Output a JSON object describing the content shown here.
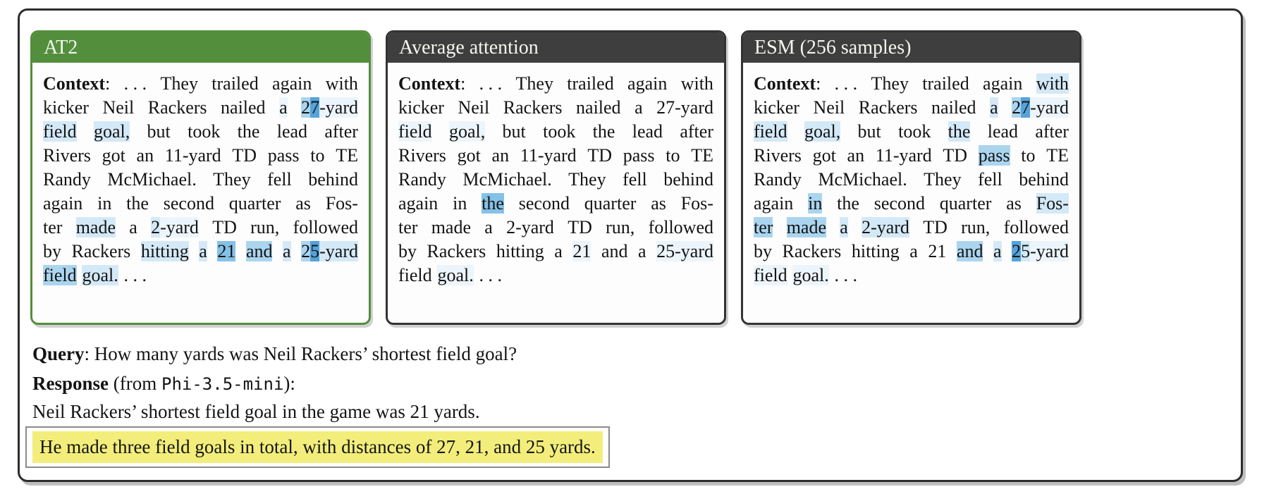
{
  "colors": {
    "accent_green": "#538e3d",
    "header_dark": "#3e3e3e",
    "outer_border": "#2d2d2d",
    "highlight_yellow": "#f3ee7b",
    "attribution_palette": {
      "1": "#ecf5fb",
      "2": "#d4e9f7",
      "3": "#abd5ef",
      "4": "#85c1e7",
      "5": "#55a3d9"
    }
  },
  "panels": [
    {
      "title": "AT2",
      "header_bg": "#538e3d",
      "border": "#538e3d",
      "lines": [
        [
          [
            {
              "t": "Context",
              "b": 1
            },
            {
              "t": ":"
            }
          ],
          [
            {
              "t": ". . ."
            }
          ],
          [
            {
              "t": "They"
            }
          ],
          [
            {
              "t": "trailed"
            }
          ],
          [
            {
              "t": "again"
            }
          ],
          [
            {
              "t": "with"
            }
          ]
        ],
        [
          [
            {
              "t": "kicker"
            }
          ],
          [
            {
              "t": "Neil"
            }
          ],
          [
            {
              "t": "Rackers"
            }
          ],
          [
            {
              "t": "nailed"
            }
          ],
          [
            {
              "t": "a",
              "h": 1
            }
          ],
          [
            {
              "t": "2",
              "h": 3
            },
            {
              "t": "7",
              "h": 5
            },
            {
              "t": "-yard",
              "h": 1
            }
          ]
        ],
        [
          [
            {
              "t": "field",
              "h": 2
            }
          ],
          [
            {
              "t": "goal,",
              "h": 2
            }
          ],
          [
            {
              "t": "but"
            }
          ],
          [
            {
              "t": "took"
            }
          ],
          [
            {
              "t": "the"
            }
          ],
          [
            {
              "t": "lead"
            }
          ],
          [
            {
              "t": "after"
            }
          ]
        ],
        [
          [
            {
              "t": "Rivers"
            }
          ],
          [
            {
              "t": "got"
            }
          ],
          [
            {
              "t": "an"
            }
          ],
          [
            {
              "t": "11-yard"
            }
          ],
          [
            {
              "t": "TD"
            }
          ],
          [
            {
              "t": "pass"
            }
          ],
          [
            {
              "t": "to"
            }
          ],
          [
            {
              "t": "TE"
            }
          ]
        ],
        [
          [
            {
              "t": "Randy"
            }
          ],
          [
            {
              "t": "McMichael."
            }
          ],
          [
            {
              "t": "They"
            }
          ],
          [
            {
              "t": "fell"
            }
          ],
          [
            {
              "t": "behind"
            }
          ]
        ],
        [
          [
            {
              "t": "again"
            }
          ],
          [
            {
              "t": "in"
            }
          ],
          [
            {
              "t": "the"
            }
          ],
          [
            {
              "t": "second"
            }
          ],
          [
            {
              "t": "quarter"
            }
          ],
          [
            {
              "t": "as"
            }
          ],
          [
            {
              "t": "Fos-"
            }
          ]
        ],
        [
          [
            {
              "t": "ter"
            }
          ],
          [
            {
              "t": "made",
              "h": 2
            }
          ],
          [
            {
              "t": "a"
            }
          ],
          [
            {
              "t": "2",
              "h": 2
            },
            {
              "t": "-yard",
              "h": 1
            }
          ],
          [
            {
              "t": "TD"
            }
          ],
          [
            {
              "t": "run,"
            }
          ],
          [
            {
              "t": "followed"
            }
          ]
        ],
        [
          [
            {
              "t": "by"
            }
          ],
          [
            {
              "t": "Rackers"
            }
          ],
          [
            {
              "t": "hitting",
              "h": 2
            }
          ],
          [
            {
              "t": "a",
              "h": 2
            }
          ],
          [
            {
              "t": "21",
              "h": 4
            }
          ],
          [
            {
              "t": "and",
              "h": 3
            }
          ],
          [
            {
              "t": "a",
              "h": 2
            }
          ],
          [
            {
              "t": "2",
              "h": 3
            },
            {
              "t": "5",
              "h": 5
            },
            {
              "t": "-yard",
              "h": 2
            }
          ]
        ],
        [
          [
            {
              "t": "field",
              "h": 3
            }
          ],
          [
            {
              "t": "goal.",
              "h": 2
            }
          ],
          [
            {
              "t": ". . ."
            }
          ]
        ]
      ]
    },
    {
      "title": "Average attention",
      "header_bg": "#3e3e3e",
      "border": "#333333",
      "lines": [
        [
          [
            {
              "t": "Context",
              "b": 1
            },
            {
              "t": ":"
            }
          ],
          [
            {
              "t": ". . ."
            }
          ],
          [
            {
              "t": "They"
            }
          ],
          [
            {
              "t": "trailed"
            }
          ],
          [
            {
              "t": "again"
            }
          ],
          [
            {
              "t": "with"
            }
          ]
        ],
        [
          [
            {
              "t": "kicker"
            }
          ],
          [
            {
              "t": "Neil"
            }
          ],
          [
            {
              "t": "Rackers"
            }
          ],
          [
            {
              "t": "nailed"
            }
          ],
          [
            {
              "t": "a"
            }
          ],
          [
            {
              "t": "27-yard"
            }
          ]
        ],
        [
          [
            {
              "t": "field",
              "h": 1
            }
          ],
          [
            {
              "t": "goal,",
              "h": 1
            }
          ],
          [
            {
              "t": "but"
            }
          ],
          [
            {
              "t": "took"
            }
          ],
          [
            {
              "t": "the"
            }
          ],
          [
            {
              "t": "lead"
            }
          ],
          [
            {
              "t": "after"
            }
          ]
        ],
        [
          [
            {
              "t": "Rivers"
            }
          ],
          [
            {
              "t": "got"
            }
          ],
          [
            {
              "t": "an"
            }
          ],
          [
            {
              "t": "11-yard"
            }
          ],
          [
            {
              "t": "TD"
            }
          ],
          [
            {
              "t": "pass"
            }
          ],
          [
            {
              "t": "to"
            }
          ],
          [
            {
              "t": "TE"
            }
          ]
        ],
        [
          [
            {
              "t": "Randy"
            }
          ],
          [
            {
              "t": "McMichael."
            }
          ],
          [
            {
              "t": "They"
            }
          ],
          [
            {
              "t": "fell"
            }
          ],
          [
            {
              "t": "behind"
            }
          ]
        ],
        [
          [
            {
              "t": "again"
            }
          ],
          [
            {
              "t": "in"
            }
          ],
          [
            {
              "t": "the",
              "h": 4
            }
          ],
          [
            {
              "t": "second"
            }
          ],
          [
            {
              "t": "quarter"
            }
          ],
          [
            {
              "t": "as"
            }
          ],
          [
            {
              "t": "Fos-"
            }
          ]
        ],
        [
          [
            {
              "t": "ter"
            }
          ],
          [
            {
              "t": "made"
            }
          ],
          [
            {
              "t": "a"
            }
          ],
          [
            {
              "t": "2-yard"
            }
          ],
          [
            {
              "t": "TD"
            }
          ],
          [
            {
              "t": "run,"
            }
          ],
          [
            {
              "t": "followed"
            }
          ]
        ],
        [
          [
            {
              "t": "by"
            }
          ],
          [
            {
              "t": "Rackers"
            }
          ],
          [
            {
              "t": "hitting"
            }
          ],
          [
            {
              "t": "a"
            }
          ],
          [
            {
              "t": "21",
              "h": 1
            }
          ],
          [
            {
              "t": "and"
            }
          ],
          [
            {
              "t": "a"
            }
          ],
          [
            {
              "t": "25-yard",
              "h": 1
            }
          ]
        ],
        [
          [
            {
              "t": "field"
            }
          ],
          [
            {
              "t": "goal.",
              "h": 1
            }
          ],
          [
            {
              "t": ". . ."
            }
          ]
        ]
      ]
    },
    {
      "title": "ESM (256 samples)",
      "header_bg": "#3e3e3e",
      "border": "#333333",
      "lines": [
        [
          [
            {
              "t": "Context",
              "b": 1
            },
            {
              "t": ":"
            }
          ],
          [
            {
              "t": ". . ."
            }
          ],
          [
            {
              "t": "They"
            }
          ],
          [
            {
              "t": "trailed"
            }
          ],
          [
            {
              "t": "again"
            }
          ],
          [
            {
              "t": "with",
              "h": 2
            }
          ]
        ],
        [
          [
            {
              "t": "kicker"
            }
          ],
          [
            {
              "t": "Neil"
            }
          ],
          [
            {
              "t": "Rackers"
            }
          ],
          [
            {
              "t": "nailed"
            }
          ],
          [
            {
              "t": "a",
              "h": 2
            }
          ],
          [
            {
              "t": "2",
              "h": 3
            },
            {
              "t": "7",
              "h": 5
            },
            {
              "t": "-yard",
              "h": 1
            }
          ]
        ],
        [
          [
            {
              "t": "field",
              "h": 2
            }
          ],
          [
            {
              "t": "goal,",
              "h": 2
            }
          ],
          [
            {
              "t": "but"
            }
          ],
          [
            {
              "t": "took"
            }
          ],
          [
            {
              "t": "the",
              "h": 2
            }
          ],
          [
            {
              "t": "lead"
            }
          ],
          [
            {
              "t": "after"
            }
          ]
        ],
        [
          [
            {
              "t": "Rivers"
            }
          ],
          [
            {
              "t": "got"
            }
          ],
          [
            {
              "t": "an"
            }
          ],
          [
            {
              "t": "11-yard"
            }
          ],
          [
            {
              "t": "TD"
            }
          ],
          [
            {
              "t": "pass",
              "h": 3
            }
          ],
          [
            {
              "t": "to"
            }
          ],
          [
            {
              "t": "TE"
            }
          ]
        ],
        [
          [
            {
              "t": "Randy"
            }
          ],
          [
            {
              "t": "McMichael."
            }
          ],
          [
            {
              "t": "They"
            }
          ],
          [
            {
              "t": "fell"
            }
          ],
          [
            {
              "t": "behind"
            }
          ]
        ],
        [
          [
            {
              "t": "again"
            }
          ],
          [
            {
              "t": "in",
              "h": 3
            }
          ],
          [
            {
              "t": "the"
            }
          ],
          [
            {
              "t": "second"
            }
          ],
          [
            {
              "t": "quarter"
            }
          ],
          [
            {
              "t": "as"
            }
          ],
          [
            {
              "t": "Fos-",
              "h": 2
            }
          ]
        ],
        [
          [
            {
              "t": "ter",
              "h": 3
            }
          ],
          [
            {
              "t": "made",
              "h": 3
            }
          ],
          [
            {
              "t": "a",
              "h": 2
            }
          ],
          [
            {
              "t": "2-yard",
              "h": 2
            }
          ],
          [
            {
              "t": "TD"
            }
          ],
          [
            {
              "t": "run,"
            }
          ],
          [
            {
              "t": "followed"
            }
          ]
        ],
        [
          [
            {
              "t": "by"
            }
          ],
          [
            {
              "t": "Rackers"
            }
          ],
          [
            {
              "t": "hitting"
            }
          ],
          [
            {
              "t": "a"
            }
          ],
          [
            {
              "t": "21"
            }
          ],
          [
            {
              "t": "and",
              "h": 3
            }
          ],
          [
            {
              "t": "a",
              "h": 2
            }
          ],
          [
            {
              "t": "2",
              "h": 5
            },
            {
              "t": "5",
              "h": 2
            },
            {
              "t": "-yard",
              "h": 1
            }
          ]
        ],
        [
          [
            {
              "t": "field",
              "h": 1
            }
          ],
          [
            {
              "t": "goal.",
              "h": 1
            }
          ],
          [
            {
              "t": ". . ."
            }
          ]
        ]
      ]
    }
  ],
  "qa": {
    "query_label": "Query",
    "query_sep": ": ",
    "query_text": "How many yards was Neil Rackers’ shortest field goal?",
    "response_label": "Response",
    "response_pre": " (from ",
    "response_model": "Phi-3.5-mini",
    "response_post": "):",
    "response_text": "Neil Rackers’ shortest field goal in the game was 21 yards.",
    "attributed_sentence": "He made three field goals in total, with distances of 27, 21, and 25 yards."
  }
}
